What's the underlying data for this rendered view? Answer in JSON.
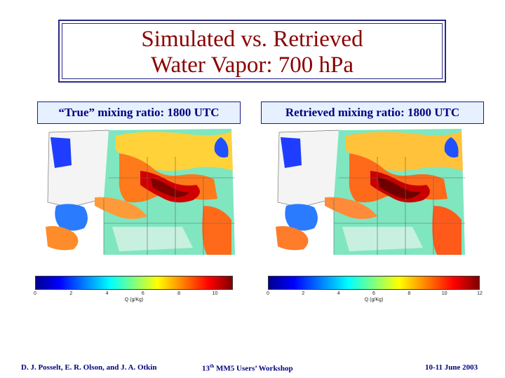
{
  "title": {
    "line1": "Simulated vs. Retrieved",
    "line2": "Water Vapor: 700 hPa"
  },
  "panels": [
    {
      "label": "“True” mixing ratio: 1800 UTC",
      "colorbar": {
        "ticks": [
          "0",
          "2",
          "4",
          "6",
          "8",
          "10"
        ],
        "max": 11,
        "label": "Q (g/Kg)"
      }
    },
    {
      "label": "Retrieved mixing ratio: 1800 UTC",
      "colorbar": {
        "ticks": [
          "0",
          "2",
          "4",
          "6",
          "8",
          "10",
          "12"
        ],
        "max": 12,
        "label": "Q (g/Kg)"
      }
    }
  ],
  "footer": {
    "authors": "D. J. Posselt, E. R. Olson, and J. A. Otkin",
    "workshop_prefix": "13",
    "workshop_sup": "th",
    "workshop_suffix": " MM5 Users’ Workshop",
    "date": "10-11 June 2003"
  },
  "colors": {
    "title": "#8b0000",
    "label_text": "#000080",
    "border": "#2a2a88"
  }
}
